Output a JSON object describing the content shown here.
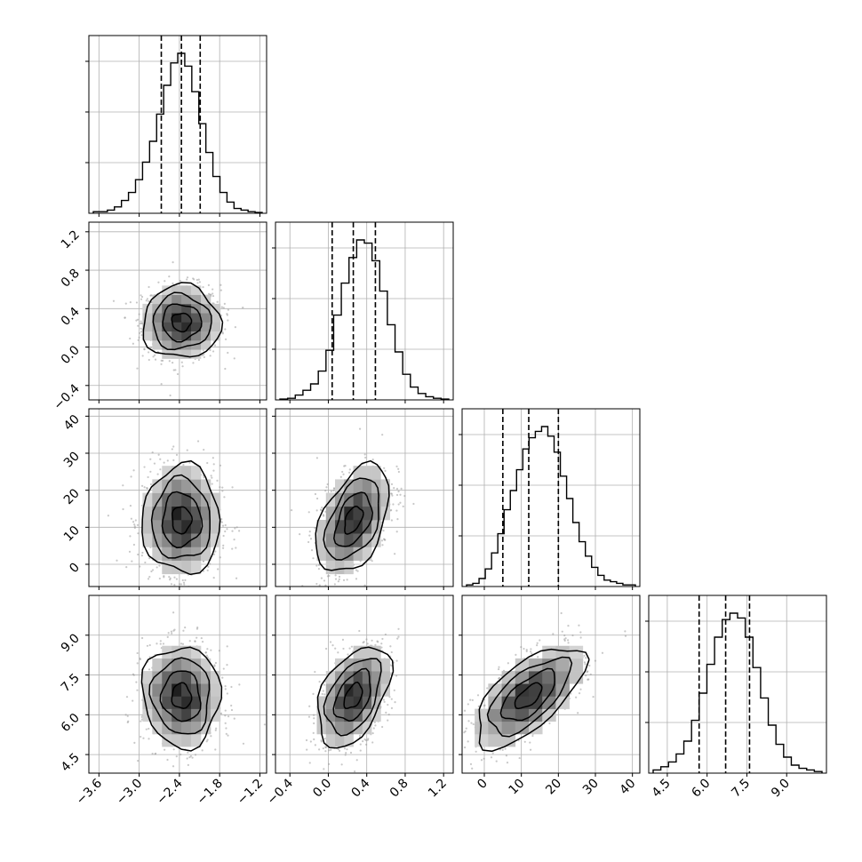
{
  "chart_data": {
    "type": "corner",
    "title": "",
    "grid": true,
    "parameters": [
      {
        "range": [
          -3.75,
          -1.1
        ],
        "ticks": [
          -3.6,
          -3.0,
          -2.4,
          -1.8,
          -1.2
        ],
        "tick_labels": [
          "−3.6",
          "−3.0",
          "−2.4",
          "−1.8",
          "−1.2"
        ],
        "quantiles": [
          -2.67,
          -2.37,
          -2.09
        ]
      },
      {
        "range": [
          -0.55,
          1.3
        ],
        "ticks": [
          -0.4,
          0.0,
          0.4,
          0.8,
          1.2
        ],
        "tick_labels": [
          "−0.4",
          "0.0",
          "0.4",
          "0.8",
          "1.2"
        ],
        "quantiles": [
          0.04,
          0.26,
          0.49
        ]
      },
      {
        "range": [
          -6,
          42
        ],
        "ticks": [
          0,
          10,
          20,
          30,
          40
        ],
        "tick_labels": [
          "0",
          "10",
          "20",
          "30",
          "40"
        ],
        "quantiles": [
          5,
          12,
          20
        ]
      },
      {
        "range": [
          3.8,
          10.5
        ],
        "ticks": [
          4.5,
          6.0,
          7.5,
          9.0
        ],
        "tick_labels": [
          "4.5",
          "6.0",
          "7.5",
          "9.0"
        ],
        "quantiles": [
          5.7,
          6.7,
          7.6
        ]
      }
    ],
    "histograms": [
      [
        0.01,
        0.01,
        0.02,
        0.04,
        0.08,
        0.13,
        0.21,
        0.32,
        0.45,
        0.62,
        0.8,
        0.94,
        1.0,
        0.92,
        0.76,
        0.56,
        0.38,
        0.23,
        0.13,
        0.07,
        0.03,
        0.02,
        0.01,
        0.005
      ],
      [
        0.005,
        0.01,
        0.03,
        0.06,
        0.1,
        0.18,
        0.31,
        0.53,
        0.73,
        0.89,
        1.0,
        0.98,
        0.87,
        0.68,
        0.47,
        0.3,
        0.16,
        0.08,
        0.04,
        0.02,
        0.01,
        0.005
      ],
      [
        0.01,
        0.02,
        0.05,
        0.11,
        0.21,
        0.33,
        0.48,
        0.6,
        0.73,
        0.86,
        0.93,
        0.97,
        1.0,
        0.94,
        0.84,
        0.69,
        0.55,
        0.4,
        0.28,
        0.19,
        0.12,
        0.07,
        0.04,
        0.03,
        0.02,
        0.01,
        0.01
      ],
      [
        0.02,
        0.04,
        0.07,
        0.12,
        0.2,
        0.33,
        0.5,
        0.68,
        0.85,
        0.96,
        1.0,
        0.97,
        0.85,
        0.66,
        0.47,
        0.3,
        0.18,
        0.1,
        0.05,
        0.03,
        0.02,
        0.01
      ]
    ],
    "pairs": [
      {
        "x": 0,
        "y": 1,
        "mean": [
          -2.37,
          0.26
        ],
        "std": [
          0.29,
          0.19
        ],
        "corr": 0.0
      },
      {
        "x": 0,
        "y": 2,
        "mean": [
          -2.37,
          12.0
        ],
        "std": [
          0.29,
          7.3
        ],
        "corr": 0.0
      },
      {
        "x": 1,
        "y": 2,
        "mean": [
          0.26,
          12.0
        ],
        "std": [
          0.19,
          7.3
        ],
        "corr": 0.45
      },
      {
        "x": 0,
        "y": 3,
        "mean": [
          -2.37,
          6.7
        ],
        "std": [
          0.29,
          0.95
        ],
        "corr": -0.05
      },
      {
        "x": 1,
        "y": 3,
        "mean": [
          0.26,
          6.7
        ],
        "std": [
          0.19,
          0.95
        ],
        "corr": 0.45
      },
      {
        "x": 2,
        "y": 3,
        "mean": [
          12.0,
          6.7
        ],
        "std": [
          7.3,
          0.95
        ],
        "corr": 0.65
      }
    ],
    "contour_levels_sigma": [
      0.5,
      1.0,
      1.5,
      2.0
    ],
    "colors": {
      "line": "#000000",
      "grid": "#b0b0b0",
      "points": "#9a9a9a",
      "background": "#ffffff"
    }
  }
}
